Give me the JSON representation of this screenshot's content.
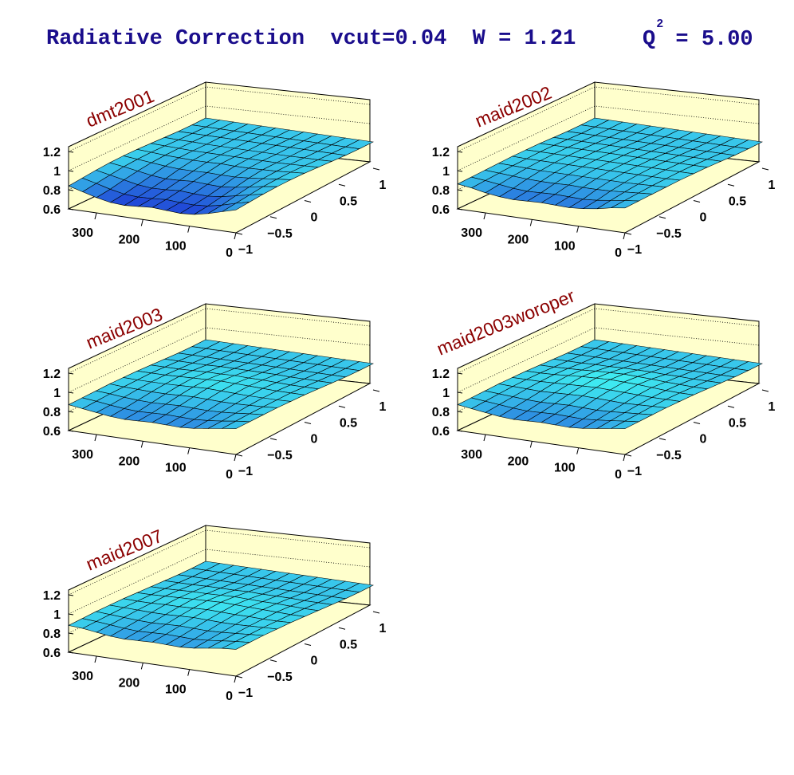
{
  "header": {
    "title_main": "Radiative Correction  vcut=0.04  W = 1.21",
    "title_q": "Q",
    "title_q_sup": "2",
    "title_q_value": " = 5.00"
  },
  "colors": {
    "title": "#1a0d8c",
    "panel_title": "#8b0000",
    "frame_fill": "#ffffcc",
    "surface_low": "#1f3fd6",
    "surface_high": "#40f2f2"
  },
  "chart_data": [
    {
      "type": "surface",
      "title": "dmt2001",
      "x_ticks": [
        "0",
        "100",
        "200",
        "300"
      ],
      "y_ticks": [
        "−1",
        "−0.5",
        "0",
        "0.5",
        "1"
      ],
      "z_ticks": [
        "0.6",
        "0.8",
        "1",
        "1.2"
      ],
      "xlim": [
        0,
        360
      ],
      "ylim": [
        -1,
        1
      ],
      "zlim": [
        0.6,
        1.25
      ],
      "grid": true,
      "phi_deg": [
        0,
        30,
        60,
        90,
        120,
        150,
        180,
        210,
        240,
        270,
        300,
        330,
        360
      ],
      "cos_theta": [
        -1,
        -0.8,
        -0.6,
        -0.4,
        -0.2,
        0,
        0.2,
        0.4,
        0.6,
        0.8,
        1
      ],
      "z": [
        [
          0.84,
          0.855,
          0.87,
          0.88,
          0.885,
          0.885,
          0.88,
          0.875,
          0.87,
          0.87,
          0.875
        ],
        [
          0.8,
          0.82,
          0.84,
          0.86,
          0.87,
          0.875,
          0.875,
          0.87,
          0.87,
          0.87,
          0.875
        ],
        [
          0.76,
          0.78,
          0.81,
          0.835,
          0.855,
          0.865,
          0.87,
          0.87,
          0.87,
          0.87,
          0.875
        ],
        [
          0.73,
          0.75,
          0.78,
          0.81,
          0.84,
          0.86,
          0.865,
          0.865,
          0.87,
          0.87,
          0.875
        ],
        [
          0.72,
          0.74,
          0.765,
          0.795,
          0.83,
          0.855,
          0.865,
          0.865,
          0.87,
          0.87,
          0.875
        ],
        [
          0.73,
          0.745,
          0.77,
          0.8,
          0.83,
          0.855,
          0.865,
          0.865,
          0.87,
          0.87,
          0.875
        ],
        [
          0.74,
          0.755,
          0.78,
          0.81,
          0.835,
          0.86,
          0.865,
          0.865,
          0.87,
          0.87,
          0.875
        ],
        [
          0.73,
          0.745,
          0.77,
          0.8,
          0.83,
          0.855,
          0.865,
          0.865,
          0.87,
          0.87,
          0.875
        ],
        [
          0.72,
          0.74,
          0.765,
          0.795,
          0.83,
          0.855,
          0.865,
          0.865,
          0.87,
          0.87,
          0.875
        ],
        [
          0.73,
          0.75,
          0.78,
          0.81,
          0.84,
          0.86,
          0.865,
          0.865,
          0.87,
          0.87,
          0.875
        ],
        [
          0.76,
          0.78,
          0.81,
          0.835,
          0.855,
          0.865,
          0.87,
          0.87,
          0.87,
          0.87,
          0.875
        ],
        [
          0.8,
          0.82,
          0.84,
          0.86,
          0.87,
          0.875,
          0.875,
          0.87,
          0.87,
          0.87,
          0.875
        ],
        [
          0.84,
          0.855,
          0.87,
          0.88,
          0.885,
          0.885,
          0.88,
          0.875,
          0.87,
          0.87,
          0.875
        ]
      ]
    },
    {
      "type": "surface",
      "title": "maid2002",
      "x_ticks": [
        "0",
        "100",
        "200",
        "300"
      ],
      "y_ticks": [
        "−1",
        "−0.5",
        "0",
        "0.5",
        "1"
      ],
      "z_ticks": [
        "0.6",
        "0.8",
        "1",
        "1.2"
      ],
      "xlim": [
        0,
        360
      ],
      "ylim": [
        -1,
        1
      ],
      "zlim": [
        0.6,
        1.25
      ],
      "grid": true,
      "phi_deg": [
        0,
        30,
        60,
        90,
        120,
        150,
        180,
        210,
        240,
        270,
        300,
        330,
        360
      ],
      "cos_theta": [
        -1,
        -0.8,
        -0.6,
        -0.4,
        -0.2,
        0,
        0.2,
        0.4,
        0.6,
        0.8,
        1
      ],
      "z": [
        [
          0.86,
          0.865,
          0.87,
          0.875,
          0.88,
          0.88,
          0.88,
          0.875,
          0.87,
          0.87,
          0.875
        ],
        [
          0.84,
          0.85,
          0.86,
          0.87,
          0.875,
          0.88,
          0.88,
          0.875,
          0.87,
          0.87,
          0.875
        ],
        [
          0.81,
          0.83,
          0.85,
          0.865,
          0.875,
          0.88,
          0.88,
          0.875,
          0.87,
          0.87,
          0.875
        ],
        [
          0.79,
          0.81,
          0.84,
          0.86,
          0.875,
          0.88,
          0.88,
          0.875,
          0.87,
          0.87,
          0.875
        ],
        [
          0.78,
          0.8,
          0.835,
          0.86,
          0.875,
          0.88,
          0.88,
          0.875,
          0.87,
          0.87,
          0.875
        ],
        [
          0.785,
          0.805,
          0.835,
          0.86,
          0.875,
          0.88,
          0.88,
          0.875,
          0.87,
          0.87,
          0.875
        ],
        [
          0.79,
          0.81,
          0.84,
          0.86,
          0.875,
          0.88,
          0.88,
          0.875,
          0.87,
          0.87,
          0.875
        ],
        [
          0.785,
          0.805,
          0.835,
          0.86,
          0.875,
          0.88,
          0.88,
          0.875,
          0.87,
          0.87,
          0.875
        ],
        [
          0.78,
          0.8,
          0.835,
          0.86,
          0.875,
          0.88,
          0.88,
          0.875,
          0.87,
          0.87,
          0.875
        ],
        [
          0.79,
          0.81,
          0.84,
          0.86,
          0.875,
          0.88,
          0.88,
          0.875,
          0.87,
          0.87,
          0.875
        ],
        [
          0.81,
          0.83,
          0.85,
          0.865,
          0.875,
          0.88,
          0.88,
          0.875,
          0.87,
          0.87,
          0.875
        ],
        [
          0.84,
          0.85,
          0.86,
          0.87,
          0.875,
          0.88,
          0.88,
          0.875,
          0.87,
          0.87,
          0.875
        ],
        [
          0.86,
          0.865,
          0.87,
          0.875,
          0.88,
          0.88,
          0.88,
          0.875,
          0.87,
          0.87,
          0.875
        ]
      ]
    },
    {
      "type": "surface",
      "title": "maid2003",
      "x_ticks": [
        "0",
        "100",
        "200",
        "300"
      ],
      "y_ticks": [
        "−1",
        "−0.5",
        "0",
        "0.5",
        "1"
      ],
      "z_ticks": [
        "0.6",
        "0.8",
        "1",
        "1.2"
      ],
      "xlim": [
        0,
        360
      ],
      "ylim": [
        -1,
        1
      ],
      "zlim": [
        0.6,
        1.25
      ],
      "grid": true,
      "phi_deg": [
        0,
        30,
        60,
        90,
        120,
        150,
        180,
        210,
        240,
        270,
        300,
        330,
        360
      ],
      "cos_theta": [
        -1,
        -0.8,
        -0.6,
        -0.4,
        -0.2,
        0,
        0.2,
        0.4,
        0.6,
        0.8,
        1
      ],
      "z": [
        [
          0.87,
          0.875,
          0.88,
          0.885,
          0.885,
          0.885,
          0.88,
          0.875,
          0.87,
          0.87,
          0.875
        ],
        [
          0.85,
          0.86,
          0.87,
          0.875,
          0.88,
          0.885,
          0.88,
          0.875,
          0.87,
          0.87,
          0.875
        ],
        [
          0.83,
          0.84,
          0.855,
          0.87,
          0.88,
          0.885,
          0.88,
          0.875,
          0.87,
          0.87,
          0.875
        ],
        [
          0.81,
          0.825,
          0.845,
          0.865,
          0.88,
          0.89,
          0.885,
          0.875,
          0.87,
          0.87,
          0.875
        ],
        [
          0.8,
          0.815,
          0.84,
          0.865,
          0.885,
          0.895,
          0.89,
          0.88,
          0.87,
          0.87,
          0.875
        ],
        [
          0.805,
          0.82,
          0.845,
          0.87,
          0.89,
          0.9,
          0.89,
          0.88,
          0.87,
          0.87,
          0.875
        ],
        [
          0.81,
          0.825,
          0.85,
          0.875,
          0.895,
          0.905,
          0.895,
          0.88,
          0.87,
          0.87,
          0.875
        ],
        [
          0.805,
          0.82,
          0.845,
          0.87,
          0.89,
          0.9,
          0.89,
          0.88,
          0.87,
          0.87,
          0.875
        ],
        [
          0.8,
          0.815,
          0.84,
          0.865,
          0.885,
          0.895,
          0.89,
          0.88,
          0.87,
          0.87,
          0.875
        ],
        [
          0.81,
          0.825,
          0.845,
          0.865,
          0.88,
          0.89,
          0.885,
          0.875,
          0.87,
          0.87,
          0.875
        ],
        [
          0.83,
          0.84,
          0.855,
          0.87,
          0.88,
          0.885,
          0.88,
          0.875,
          0.87,
          0.87,
          0.875
        ],
        [
          0.85,
          0.86,
          0.87,
          0.875,
          0.88,
          0.885,
          0.88,
          0.875,
          0.87,
          0.87,
          0.875
        ],
        [
          0.87,
          0.875,
          0.88,
          0.885,
          0.885,
          0.885,
          0.88,
          0.875,
          0.87,
          0.87,
          0.875
        ]
      ]
    },
    {
      "type": "surface",
      "title": "maid2003woroper",
      "x_ticks": [
        "0",
        "100",
        "200",
        "300"
      ],
      "y_ticks": [
        "−1",
        "−0.5",
        "0",
        "0.5",
        "1"
      ],
      "z_ticks": [
        "0.6",
        "0.8",
        "1",
        "1.2"
      ],
      "xlim": [
        0,
        360
      ],
      "ylim": [
        -1,
        1
      ],
      "zlim": [
        0.6,
        1.25
      ],
      "grid": true,
      "phi_deg": [
        0,
        30,
        60,
        90,
        120,
        150,
        180,
        210,
        240,
        270,
        300,
        330,
        360
      ],
      "cos_theta": [
        -1,
        -0.8,
        -0.6,
        -0.4,
        -0.2,
        0,
        0.2,
        0.4,
        0.6,
        0.8,
        1
      ],
      "z": [
        [
          0.87,
          0.875,
          0.88,
          0.885,
          0.885,
          0.885,
          0.88,
          0.875,
          0.87,
          0.87,
          0.875
        ],
        [
          0.85,
          0.86,
          0.87,
          0.88,
          0.885,
          0.885,
          0.88,
          0.875,
          0.87,
          0.87,
          0.875
        ],
        [
          0.83,
          0.845,
          0.86,
          0.875,
          0.885,
          0.89,
          0.885,
          0.875,
          0.87,
          0.87,
          0.875
        ],
        [
          0.81,
          0.83,
          0.85,
          0.87,
          0.89,
          0.9,
          0.89,
          0.88,
          0.87,
          0.87,
          0.875
        ],
        [
          0.8,
          0.82,
          0.845,
          0.875,
          0.895,
          0.91,
          0.9,
          0.88,
          0.87,
          0.87,
          0.875
        ],
        [
          0.805,
          0.825,
          0.85,
          0.88,
          0.9,
          0.915,
          0.905,
          0.885,
          0.87,
          0.87,
          0.875
        ],
        [
          0.81,
          0.83,
          0.855,
          0.885,
          0.905,
          0.92,
          0.91,
          0.885,
          0.87,
          0.87,
          0.875
        ],
        [
          0.805,
          0.825,
          0.85,
          0.88,
          0.9,
          0.915,
          0.905,
          0.885,
          0.87,
          0.87,
          0.875
        ],
        [
          0.8,
          0.82,
          0.845,
          0.875,
          0.895,
          0.91,
          0.9,
          0.88,
          0.87,
          0.87,
          0.875
        ],
        [
          0.81,
          0.83,
          0.85,
          0.87,
          0.89,
          0.9,
          0.89,
          0.88,
          0.87,
          0.87,
          0.875
        ],
        [
          0.83,
          0.845,
          0.86,
          0.875,
          0.885,
          0.89,
          0.885,
          0.875,
          0.87,
          0.87,
          0.875
        ],
        [
          0.85,
          0.86,
          0.87,
          0.88,
          0.885,
          0.885,
          0.88,
          0.875,
          0.87,
          0.87,
          0.875
        ],
        [
          0.87,
          0.875,
          0.88,
          0.885,
          0.885,
          0.885,
          0.88,
          0.875,
          0.87,
          0.87,
          0.875
        ]
      ]
    },
    {
      "type": "surface",
      "title": "maid2007",
      "x_ticks": [
        "0",
        "100",
        "200",
        "300"
      ],
      "y_ticks": [
        "−1",
        "−0.5",
        "0",
        "0.5",
        "1"
      ],
      "z_ticks": [
        "0.6",
        "0.8",
        "1",
        "1.2"
      ],
      "xlim": [
        0,
        360
      ],
      "ylim": [
        -1,
        1
      ],
      "zlim": [
        0.6,
        1.25
      ],
      "grid": true,
      "phi_deg": [
        0,
        30,
        60,
        90,
        120,
        150,
        180,
        210,
        240,
        270,
        300,
        330,
        360
      ],
      "cos_theta": [
        -1,
        -0.8,
        -0.6,
        -0.4,
        -0.2,
        0,
        0.2,
        0.4,
        0.6,
        0.8,
        1
      ],
      "z": [
        [
          0.88,
          0.885,
          0.89,
          0.89,
          0.89,
          0.885,
          0.88,
          0.875,
          0.87,
          0.87,
          0.875
        ],
        [
          0.87,
          0.875,
          0.88,
          0.885,
          0.885,
          0.885,
          0.88,
          0.875,
          0.87,
          0.87,
          0.875
        ],
        [
          0.85,
          0.86,
          0.87,
          0.88,
          0.885,
          0.89,
          0.885,
          0.875,
          0.87,
          0.87,
          0.875
        ],
        [
          0.83,
          0.845,
          0.86,
          0.875,
          0.89,
          0.895,
          0.89,
          0.88,
          0.87,
          0.87,
          0.875
        ],
        [
          0.82,
          0.835,
          0.855,
          0.875,
          0.89,
          0.9,
          0.89,
          0.88,
          0.87,
          0.87,
          0.875
        ],
        [
          0.825,
          0.84,
          0.86,
          0.88,
          0.895,
          0.905,
          0.895,
          0.88,
          0.87,
          0.87,
          0.875
        ],
        [
          0.83,
          0.845,
          0.865,
          0.885,
          0.9,
          0.91,
          0.9,
          0.885,
          0.87,
          0.87,
          0.875
        ],
        [
          0.825,
          0.84,
          0.86,
          0.88,
          0.895,
          0.905,
          0.895,
          0.88,
          0.87,
          0.87,
          0.875
        ],
        [
          0.82,
          0.835,
          0.855,
          0.875,
          0.89,
          0.9,
          0.89,
          0.88,
          0.87,
          0.87,
          0.875
        ],
        [
          0.83,
          0.845,
          0.86,
          0.875,
          0.89,
          0.895,
          0.89,
          0.88,
          0.87,
          0.87,
          0.875
        ],
        [
          0.85,
          0.86,
          0.87,
          0.88,
          0.885,
          0.89,
          0.885,
          0.875,
          0.87,
          0.87,
          0.875
        ],
        [
          0.87,
          0.875,
          0.88,
          0.885,
          0.885,
          0.885,
          0.88,
          0.875,
          0.87,
          0.87,
          0.875
        ],
        [
          0.88,
          0.885,
          0.89,
          0.89,
          0.89,
          0.885,
          0.88,
          0.875,
          0.87,
          0.87,
          0.875
        ]
      ]
    }
  ]
}
